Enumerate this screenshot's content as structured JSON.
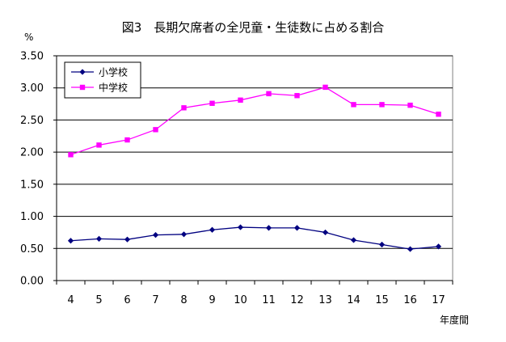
{
  "chart_data": {
    "type": "line",
    "title": "図3　長期欠席者の全児童・生徒数に占める割合",
    "ylabel": "%",
    "xlabel": "年度間",
    "x": [
      "4",
      "5",
      "6",
      "7",
      "8",
      "9",
      "10",
      "11",
      "12",
      "13",
      "14",
      "15",
      "16",
      "17"
    ],
    "ylim": [
      0,
      3.5
    ],
    "yticks": [
      "0.00",
      "0.50",
      "1.00",
      "1.50",
      "2.00",
      "2.50",
      "3.00",
      "3.50"
    ],
    "grid": true,
    "legend": "top-left",
    "series": [
      {
        "name": "小学校",
        "color": "#000080",
        "marker": "diamond",
        "values": [
          0.62,
          0.65,
          0.64,
          0.71,
          0.72,
          0.79,
          0.83,
          0.82,
          0.82,
          0.75,
          0.63,
          0.56,
          0.49,
          0.53
        ]
      },
      {
        "name": "中学校",
        "color": "#ff00ff",
        "marker": "square",
        "values": [
          1.96,
          2.11,
          2.19,
          2.35,
          2.69,
          2.76,
          2.81,
          2.91,
          2.88,
          3.01,
          2.74,
          2.74,
          2.73,
          2.59
        ]
      }
    ]
  }
}
